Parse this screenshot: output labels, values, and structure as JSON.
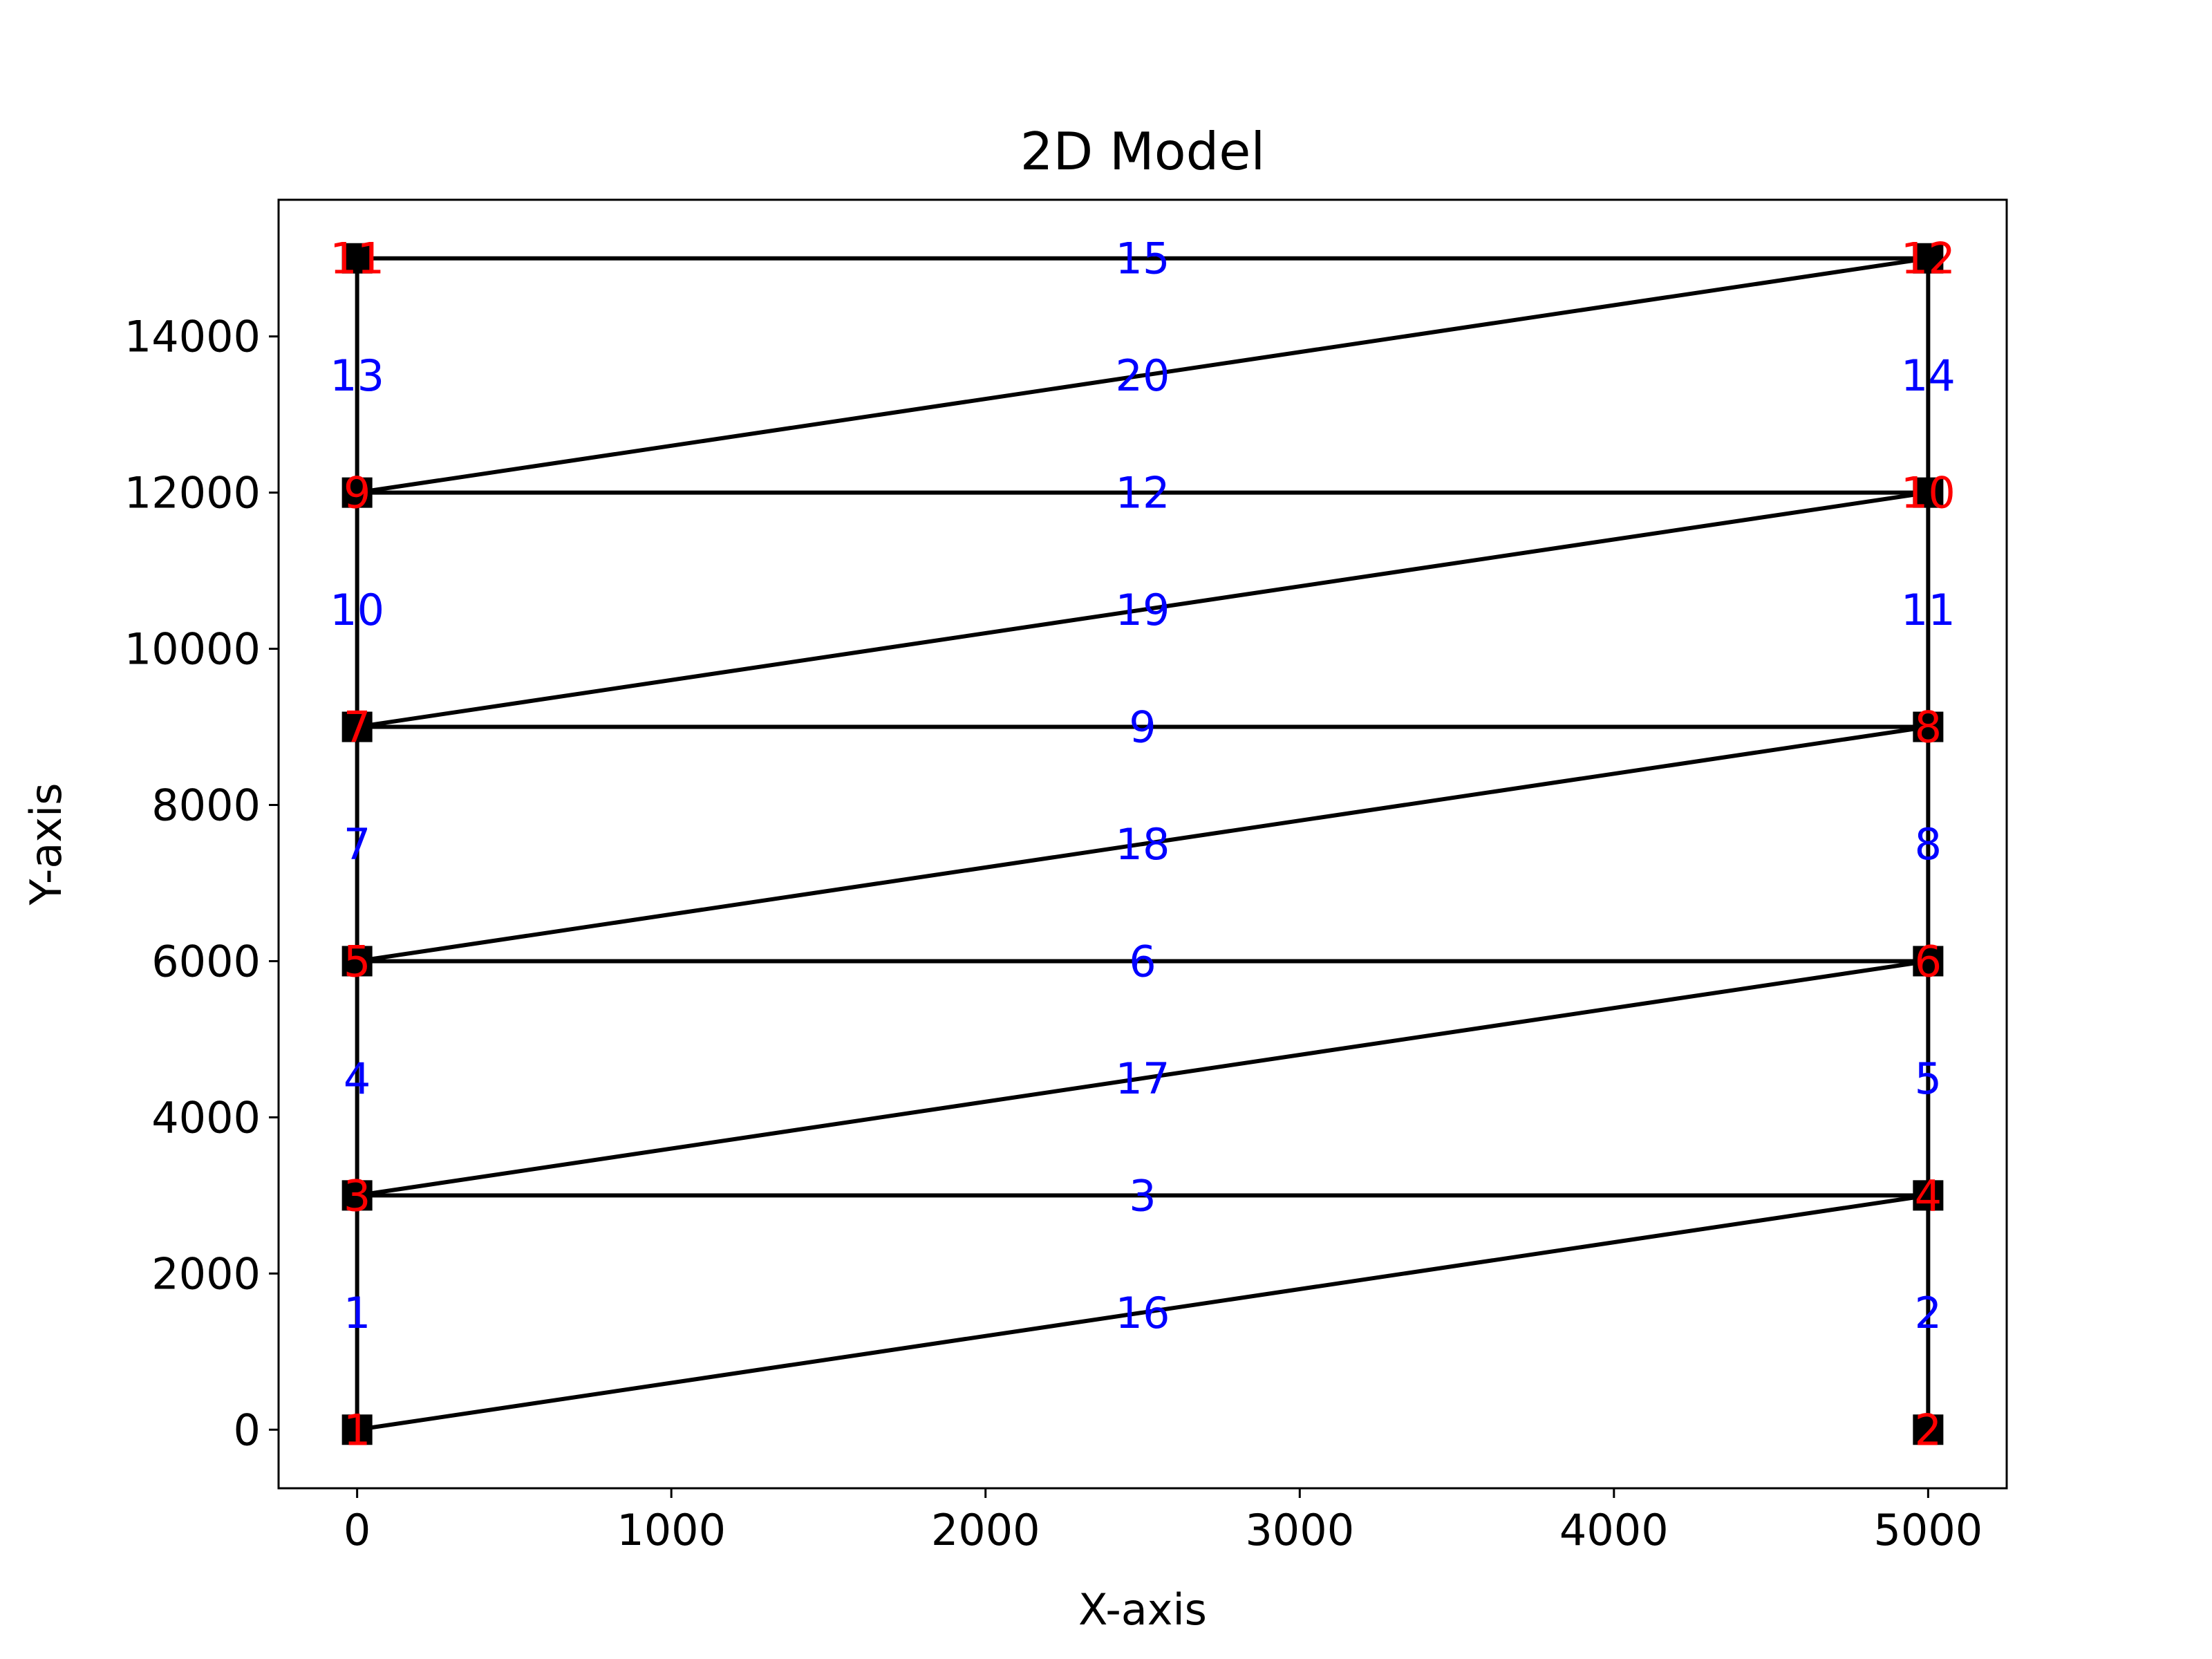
{
  "chart_data": {
    "type": "scatter",
    "title": "2D Model",
    "xlabel": "X-axis",
    "ylabel": "Y-axis",
    "xlim": [
      -250,
      5250
    ],
    "ylim": [
      -750,
      15750
    ],
    "xticks": [
      0,
      1000,
      2000,
      3000,
      4000,
      5000
    ],
    "yticks": [
      0,
      2000,
      4000,
      6000,
      8000,
      10000,
      12000,
      14000
    ],
    "grid": false,
    "nodes": [
      {
        "id": "1",
        "x": 0,
        "y": 0
      },
      {
        "id": "2",
        "x": 5000,
        "y": 0
      },
      {
        "id": "3",
        "x": 0,
        "y": 3000
      },
      {
        "id": "4",
        "x": 5000,
        "y": 3000
      },
      {
        "id": "5",
        "x": 0,
        "y": 6000
      },
      {
        "id": "6",
        "x": 5000,
        "y": 6000
      },
      {
        "id": "7",
        "x": 0,
        "y": 9000
      },
      {
        "id": "8",
        "x": 5000,
        "y": 9000
      },
      {
        "id": "9",
        "x": 0,
        "y": 12000
      },
      {
        "id": "10",
        "x": 5000,
        "y": 12000
      },
      {
        "id": "11",
        "x": 0,
        "y": 15000
      },
      {
        "id": "12",
        "x": 5000,
        "y": 15000
      }
    ],
    "elements": [
      {
        "id": "1",
        "from": "1",
        "to": "3"
      },
      {
        "id": "2",
        "from": "2",
        "to": "4"
      },
      {
        "id": "3",
        "from": "3",
        "to": "4"
      },
      {
        "id": "4",
        "from": "3",
        "to": "5"
      },
      {
        "id": "5",
        "from": "4",
        "to": "6"
      },
      {
        "id": "6",
        "from": "5",
        "to": "6"
      },
      {
        "id": "7",
        "from": "5",
        "to": "7"
      },
      {
        "id": "8",
        "from": "6",
        "to": "8"
      },
      {
        "id": "9",
        "from": "7",
        "to": "8"
      },
      {
        "id": "10",
        "from": "7",
        "to": "9"
      },
      {
        "id": "11",
        "from": "8",
        "to": "10"
      },
      {
        "id": "12",
        "from": "9",
        "to": "10"
      },
      {
        "id": "13",
        "from": "9",
        "to": "11"
      },
      {
        "id": "14",
        "from": "10",
        "to": "12"
      },
      {
        "id": "15",
        "from": "11",
        "to": "12"
      },
      {
        "id": "16",
        "from": "1",
        "to": "4"
      },
      {
        "id": "17",
        "from": "3",
        "to": "6"
      },
      {
        "id": "18",
        "from": "5",
        "to": "8"
      },
      {
        "id": "19",
        "from": "7",
        "to": "10"
      },
      {
        "id": "20",
        "from": "9",
        "to": "12"
      }
    ],
    "colors": {
      "element_line": "#000000",
      "node_marker": "#000000",
      "node_label": "#ff0000",
      "element_label": "#0000ff",
      "axes": "#000000",
      "background": "#ffffff"
    }
  }
}
